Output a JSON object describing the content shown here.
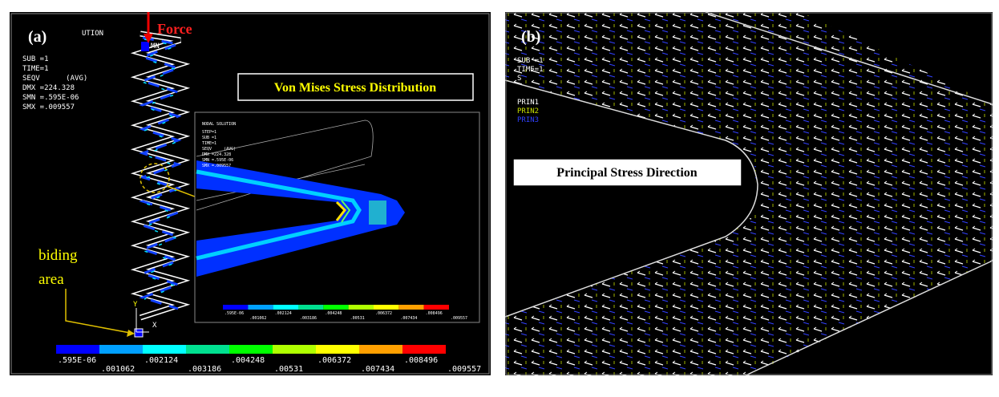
{
  "panel_a": {
    "label": "(a)",
    "force": "Force",
    "node_tag": "MN",
    "solution": "UTION",
    "info": [
      "SUB =1",
      "TIME=1",
      "SEQV      (AVG)",
      "DMX =224.328",
      "SMN =.595E-06",
      "SMX =.009557"
    ],
    "callout": "Von Mises Stress Distribution",
    "support": [
      "biding",
      "area"
    ],
    "axis_x": "X",
    "axis_y": "Y",
    "inset": {
      "title": "NODAL SOLUTION",
      "info": [
        "STEP=1",
        "SUB =1",
        "TIME=1",
        "SEQV     (AVG)",
        "DMX =224.328",
        "SMN =.595E-06",
        "SMX =.009557"
      ]
    },
    "colorbar": [
      ".595E-06",
      ".001062",
      ".002124",
      ".003186",
      ".004248",
      ".00531",
      ".006372",
      ".007434",
      ".008496",
      ".009557"
    ]
  },
  "panel_b": {
    "label": "(b)",
    "info": [
      "SUB =1",
      "TIME=1",
      "S"
    ],
    "legend": [
      "PRIN1",
      "PRIN2",
      "PRIN3"
    ],
    "callout": "Principal Stress Direction"
  }
}
